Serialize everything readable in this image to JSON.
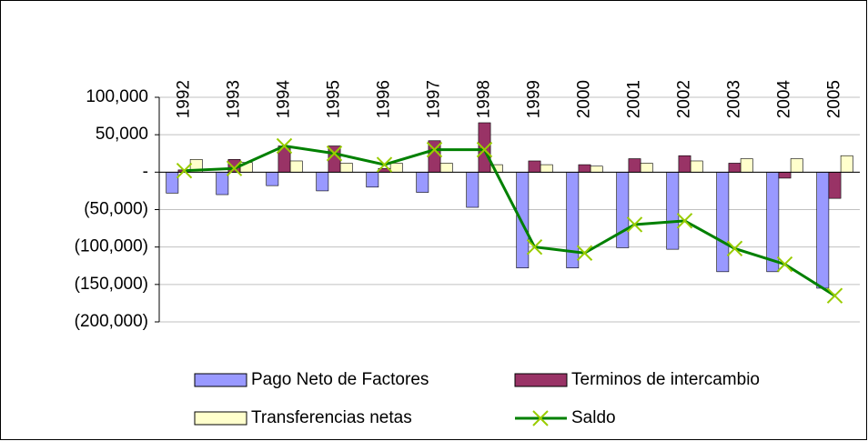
{
  "chart_data": {
    "type": "bar-line",
    "categories": [
      "1992",
      "1993",
      "1994",
      "1995",
      "1996",
      "1997",
      "1998",
      "1999",
      "2000",
      "2001",
      "2002",
      "2003",
      "2004",
      "2005"
    ],
    "series": [
      {
        "name": "Pago Neto de Factores",
        "type": "bar",
        "color": "#9999ff",
        "values": [
          -28000,
          -30000,
          -18000,
          -25000,
          -20000,
          -27000,
          -47000,
          -128000,
          -128000,
          -101000,
          -103000,
          -133000,
          -133000,
          -155000
        ]
      },
      {
        "name": "Terminos de intercambio",
        "type": "bar",
        "color": "#993366",
        "values": [
          3000,
          17000,
          35000,
          35000,
          5000,
          42000,
          66000,
          15000,
          10000,
          18000,
          22000,
          12000,
          -8000,
          -35000
        ]
      },
      {
        "name": "Transferencias netas",
        "type": "bar",
        "color": "#ffffcc",
        "values": [
          17000,
          13000,
          15000,
          12000,
          12000,
          12000,
          10000,
          10000,
          8000,
          12000,
          15000,
          18000,
          18000,
          22000
        ]
      },
      {
        "name": "Saldo",
        "type": "line",
        "color": "#008000",
        "marker_color": "#99cc00",
        "values": [
          2000,
          5000,
          35000,
          25000,
          10000,
          30000,
          30000,
          -100000,
          -108000,
          -70000,
          -65000,
          -102000,
          -123000,
          -165000
        ]
      }
    ],
    "ylim": [
      -200000,
      100000
    ],
    "yticks": [
      {
        "value": 100000,
        "label": "100,000"
      },
      {
        "value": 50000,
        "label": "50,000"
      },
      {
        "value": 0,
        "label": "-"
      },
      {
        "value": -50000,
        "label": "(50,000)"
      },
      {
        "value": -100000,
        "label": "(100,000)"
      },
      {
        "value": -150000,
        "label": "(150,000)"
      },
      {
        "value": -200000,
        "label": "(200,000)"
      }
    ],
    "grid": true,
    "legend": "bottom"
  }
}
